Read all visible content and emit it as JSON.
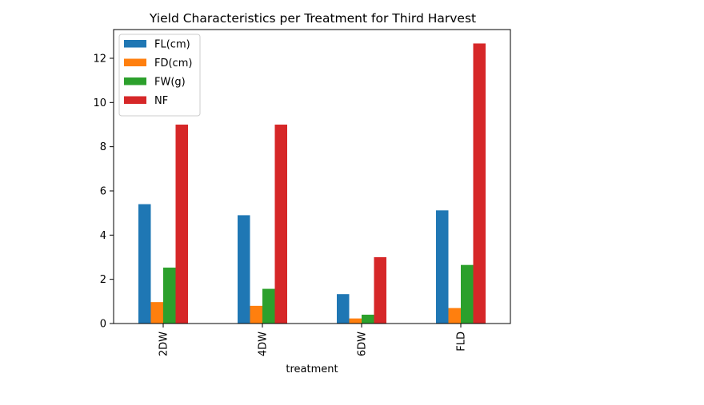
{
  "chart_data": {
    "type": "bar",
    "title": "Yield Characteristics per Treatment for Third Harvest",
    "xlabel": "treatment",
    "ylabel": "",
    "categories": [
      "2DW",
      "4DW",
      "6DW",
      "FLD"
    ],
    "series": [
      {
        "name": "FL(cm)",
        "color": "#1f77b4",
        "values": [
          5.4,
          4.9,
          1.33,
          5.12
        ]
      },
      {
        "name": "FD(cm)",
        "color": "#ff7f0e",
        "values": [
          0.97,
          0.8,
          0.23,
          0.7
        ]
      },
      {
        "name": "FW(g)",
        "color": "#2ca02c",
        "values": [
          2.53,
          1.57,
          0.4,
          2.65
        ]
      },
      {
        "name": "NF",
        "color": "#d62728",
        "values": [
          9.0,
          9.0,
          3.0,
          12.67
        ]
      }
    ],
    "ylim": [
      0,
      13.3
    ],
    "yticks": [
      0,
      2,
      4,
      6,
      8,
      10,
      12
    ],
    "grid": false,
    "legend_position": "top-left"
  }
}
